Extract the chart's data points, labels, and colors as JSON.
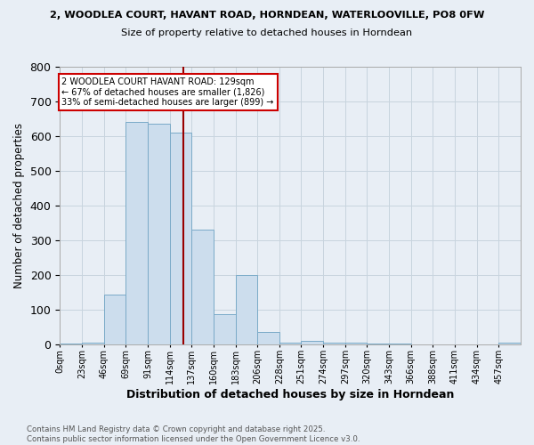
{
  "title_line1": "2, WOODLEA COURT, HAVANT ROAD, HORNDEAN, WATERLOOVILLE, PO8 0FW",
  "title_line2": "Size of property relative to detached houses in Horndean",
  "xlabel": "Distribution of detached houses by size in Horndean",
  "ylabel": "Number of detached properties",
  "bar_labels": [
    "0sqm",
    "23sqm",
    "46sqm",
    "69sqm",
    "91sqm",
    "114sqm",
    "137sqm",
    "160sqm",
    "183sqm",
    "206sqm",
    "228sqm",
    "251sqm",
    "274sqm",
    "297sqm",
    "320sqm",
    "343sqm",
    "366sqm",
    "388sqm",
    "411sqm",
    "434sqm",
    "457sqm"
  ],
  "bar_values": [
    1,
    4,
    143,
    641,
    635,
    610,
    330,
    85,
    198,
    35,
    5,
    10,
    3,
    3,
    2,
    1,
    0,
    0,
    0,
    0,
    3
  ],
  "bar_color": "#ccdded",
  "bar_edge_color": "#7aaac8",
  "grid_color": "#c8d4de",
  "background_color": "#e8eef5",
  "annotation_text": "2 WOODLEA COURT HAVANT ROAD: 129sqm\n← 67% of detached houses are smaller (1,826)\n33% of semi-detached houses are larger (899) →",
  "annotation_box_color": "#ffffff",
  "annotation_box_edge": "#cc0000",
  "vline_x": 129,
  "vline_color": "#990000",
  "footer_text": "Contains HM Land Registry data © Crown copyright and database right 2025.\nContains public sector information licensed under the Open Government Licence v3.0.",
  "ylim": [
    0,
    800
  ],
  "bin_width": 23,
  "n_bars": 21
}
